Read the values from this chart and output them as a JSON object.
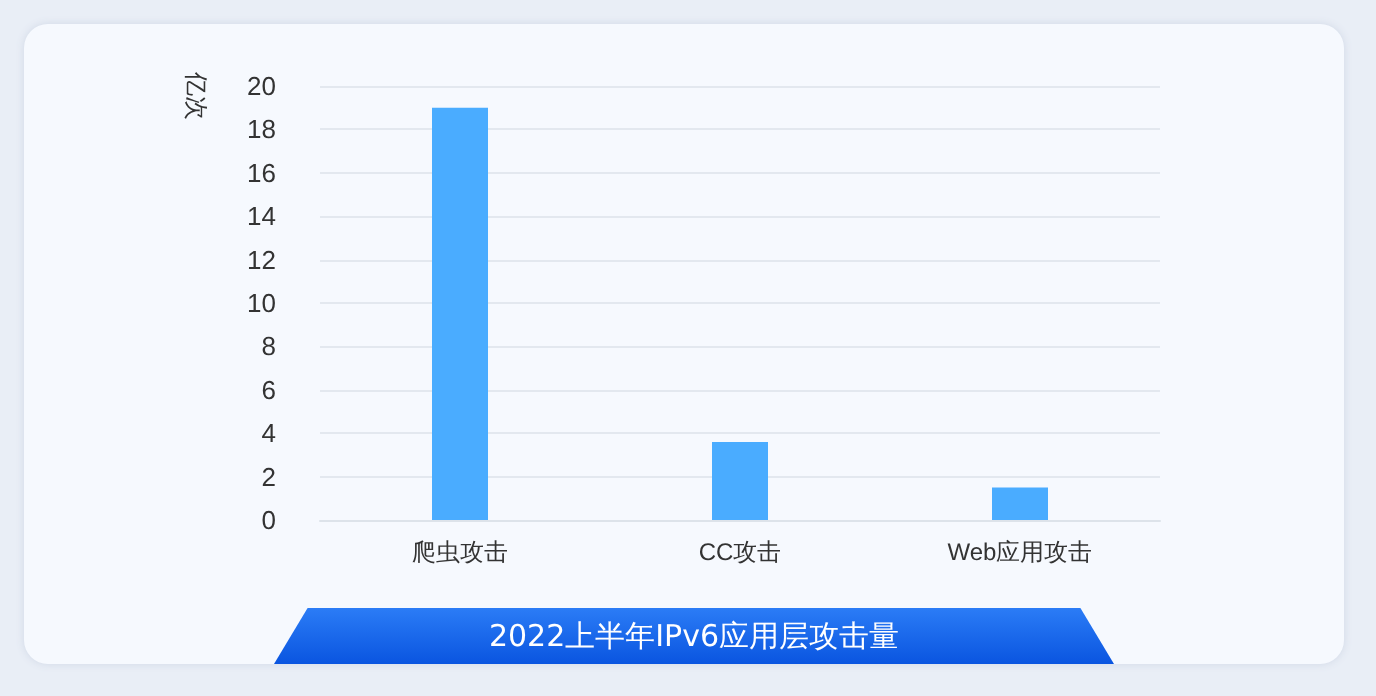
{
  "chart_data": {
    "type": "bar",
    "title": "2022上半年IPv6应用层攻击量",
    "ylabel": "亿次",
    "categories": [
      "爬虫攻击",
      "CC攻击",
      "Web应用攻击"
    ],
    "values": [
      19.0,
      3.6,
      1.5
    ],
    "color": "#4aacff",
    "ylim": [
      0,
      20
    ],
    "yticks": [
      0,
      2,
      4,
      6,
      8,
      10,
      12,
      14,
      16,
      18,
      20
    ],
    "grid": "y"
  }
}
